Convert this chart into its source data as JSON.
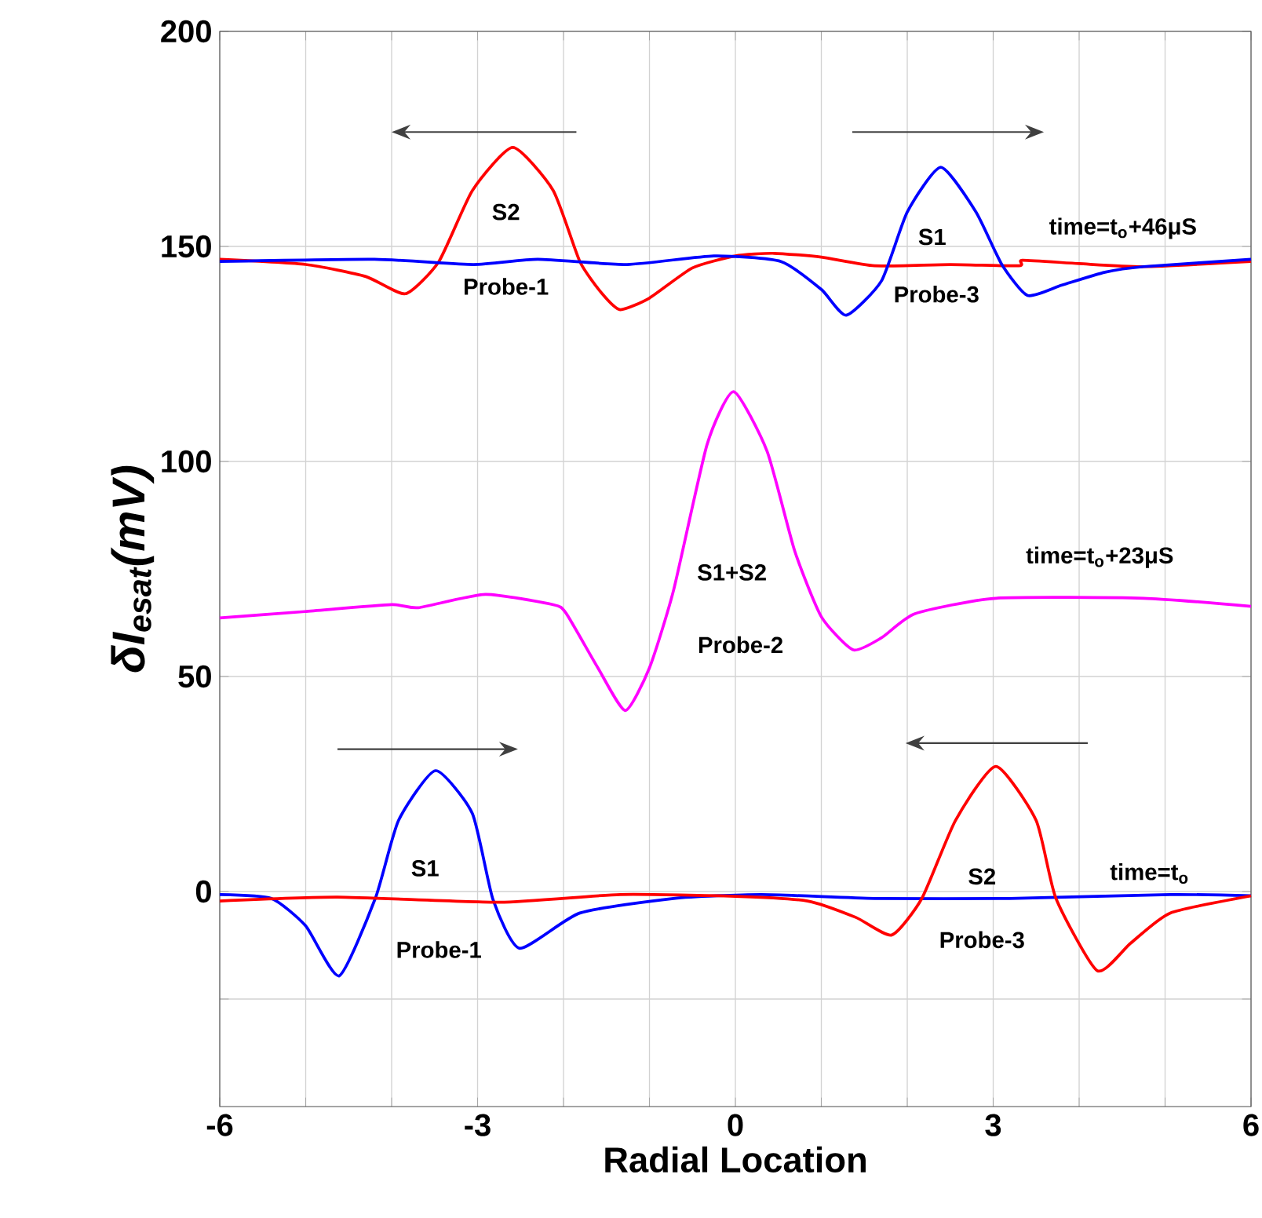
{
  "chart_data": {
    "type": "line",
    "xlabel": "Radial Location",
    "ylabel": "δI$_{esat}$(mV)",
    "xlim": [
      -6,
      6
    ],
    "xticks": [
      -6,
      {
        "value": -5,
        "label": null
      },
      {
        "value": -4,
        "label": null
      },
      -3,
      {
        "value": -2,
        "label": null
      },
      {
        "value": -1,
        "label": null
      },
      0,
      {
        "value": 1,
        "label": null
      },
      {
        "value": 2,
        "label": null
      },
      3,
      {
        "value": 4,
        "label": null
      },
      {
        "value": 5,
        "label": null
      },
      6
    ],
    "ylim": [
      -50,
      200
    ],
    "yticks": [
      {
        "value": -25,
        "label": null
      },
      0,
      50,
      100,
      150,
      200
    ],
    "grid": true,
    "marker": "none",
    "line_style": "solid",
    "series": [
      {
        "color": "#ff0000",
        "x": [
          -6,
          -5,
          -4.3,
          -3.84,
          -3.45,
          -3.06,
          -2.59,
          -2.12,
          -1.81,
          -1.55,
          -1.34,
          -1,
          -0.5,
          0,
          0.45,
          1,
          1.62,
          2.5,
          3.3,
          3.34,
          4,
          4.75,
          6
        ],
        "values": [
          147,
          145.8,
          143,
          139,
          146.5,
          163,
          173,
          163,
          146.5,
          139,
          135.3,
          138,
          145,
          147.8,
          148.4,
          147.5,
          145.5,
          145.8,
          145.5,
          146.8,
          146,
          145.3,
          146.5
        ]
      },
      {
        "color": "#0000ff",
        "x": [
          -6,
          -4.2,
          -3.05,
          -2.3,
          -1.26,
          -0.25,
          0.53,
          1,
          1.29,
          1.7,
          2.0,
          2.39,
          2.8,
          3.1,
          3.4,
          3.8,
          4.3,
          4.75,
          6
        ],
        "values": [
          146.5,
          147,
          145.8,
          147,
          145.8,
          147.8,
          146.5,
          140,
          134,
          142,
          158,
          168.4,
          158,
          145.8,
          138.6,
          141,
          144,
          145.3,
          147
        ]
      },
      {
        "color": "#ff00ff",
        "x": [
          -6,
          -5.01,
          -4.0,
          -3.69,
          -2.91,
          -2.12,
          -1.97,
          -1.6,
          -1.28,
          -1.0,
          -0.72,
          -0.33,
          -0.02,
          0.37,
          0.69,
          1.0,
          1.37,
          1.7,
          2.09,
          3.03,
          4.75,
          6
        ],
        "values": [
          63.6,
          65.1,
          66.7,
          66.0,
          69.1,
          66.7,
          64.7,
          52,
          42.1,
          52,
          70.0,
          103.9,
          116.2,
          102.3,
          79.2,
          63.9,
          56.2,
          59,
          64.6,
          68.2,
          68.2,
          66.3
        ]
      },
      {
        "color": "#0000ff",
        "x": [
          -6,
          -5.4,
          -5.0,
          -4.61,
          -4.19,
          -3.92,
          -3.49,
          -3.06,
          -2.82,
          -2.51,
          -1.81,
          -0.72,
          0.3,
          1.62,
          3.19,
          5.06,
          6
        ],
        "values": [
          -0.7,
          -1.6,
          -8,
          -19.6,
          -1.6,
          16.5,
          28.1,
          18.1,
          -1.9,
          -13.2,
          -5,
          -1.6,
          -0.7,
          -1.6,
          -1.6,
          -0.7,
          -1
        ]
      },
      {
        "color": "#ff0000",
        "x": [
          -6,
          -4.63,
          -2.74,
          -1.34,
          0,
          0.84,
          1.4,
          1.82,
          2.17,
          2.56,
          3.03,
          3.5,
          3.73,
          4.21,
          4.6,
          5.06,
          6
        ],
        "values": [
          -2.2,
          -1.3,
          -2.5,
          -0.7,
          -1.1,
          -2.2,
          -6,
          -10.1,
          -1.6,
          16.5,
          29.1,
          16.5,
          -1.6,
          -18.4,
          -12,
          -5,
          -1
        ]
      }
    ],
    "annotations": [
      "S2",
      "Probe-1",
      "S1",
      "Probe-3",
      "time=t$_{o}$+46μS",
      "S1+S2",
      "Probe-2",
      "time=t$_{o}$+23μS",
      "S1",
      "Probe-1",
      "S2",
      "Probe-3",
      "time=t$_{o}$"
    ]
  }
}
